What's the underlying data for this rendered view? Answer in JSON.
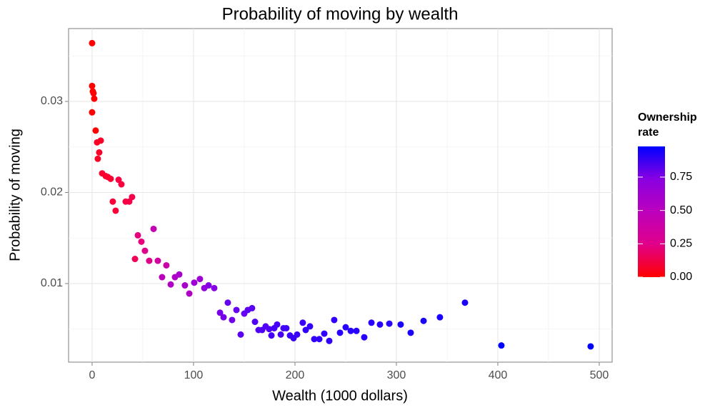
{
  "chart_data": {
    "type": "scatter",
    "title": "Probability of moving by wealth",
    "x_label": "Wealth (1000 dollars)",
    "y_label": "Probability of moving",
    "legend_title": [
      "Ownership",
      "rate"
    ],
    "series": [
      {
        "x": [
          0,
          0,
          0.7,
          1.4,
          2.1,
          0,
          3.5,
          4.9,
          8.5,
          7,
          5.6,
          9.9,
          13.4,
          15.5,
          18.3,
          20.4,
          23.2,
          26.1,
          28.9,
          33.1,
          36.6,
          39.4,
          42.3,
          45.1,
          48.6,
          52.1,
          56.3,
          60.6,
          64.8,
          69,
          73.2,
          77.5,
          81.7,
          85.9,
          91.5,
          95.8,
          100.7,
          106.3,
          110.6,
          114.8,
          120.4,
          126.1,
          129.6,
          133.8,
          138,
          142.3,
          146.5,
          150,
          153.5,
          157.7,
          160.6,
          164.1,
          167.6,
          171.1,
          174.6,
          176.8,
          179.6,
          182.4,
          186,
          188.7,
          191.5,
          195.1,
          198.6,
          202.1,
          207.7,
          210.6,
          214.8,
          219,
          224,
          228.9,
          233.8,
          238.7,
          244.4,
          250,
          255,
          260.6,
          268.3,
          275.4,
          283.8,
          293,
          304.2,
          314.1,
          326.8,
          342.9,
          367.6,
          403.5,
          491.5
        ],
        "values": [
          0.0364,
          0.0317,
          0.0311,
          0.0309,
          0.0303,
          0.0288,
          0.0268,
          0.0255,
          0.0257,
          0.0244,
          0.0237,
          0.0221,
          0.0218,
          0.0217,
          0.0215,
          0.019,
          0.018,
          0.0214,
          0.0209,
          0.019,
          0.019,
          0.0195,
          0.0127,
          0.0153,
          0.0146,
          0.0136,
          0.0125,
          0.016,
          0.0125,
          0.0107,
          0.012,
          0.0099,
          0.0107,
          0.011,
          0.0098,
          0.0089,
          0.0101,
          0.0105,
          0.0095,
          0.0098,
          0.0095,
          0.0068,
          0.0063,
          0.0079,
          0.006,
          0.0071,
          0.0044,
          0.0067,
          0.0071,
          0.0073,
          0.0058,
          0.0049,
          0.0049,
          0.0053,
          0.005,
          0.0043,
          0.0051,
          0.0055,
          0.0044,
          0.0051,
          0.0051,
          0.0043,
          0.004,
          0.0044,
          0.0057,
          0.0049,
          0.0053,
          0.0039,
          0.0039,
          0.0045,
          0.0037,
          0.006,
          0.0046,
          0.0052,
          0.0048,
          0.0048,
          0.0041,
          0.0057,
          0.0055,
          0.0056,
          0.0055,
          0.0046,
          0.0059,
          0.0063,
          0.0079,
          0.0032,
          0.0031
        ],
        "color_values": [
          0,
          0,
          0,
          0,
          0,
          0,
          0,
          0.02,
          0.02,
          0.02,
          0.02,
          0.03,
          0.03,
          0.03,
          0.03,
          0.04,
          0.04,
          0.05,
          0.05,
          0.06,
          0.06,
          0.07,
          0.1,
          0.2,
          0.2,
          0.25,
          0.25,
          0.45,
          0.35,
          0.5,
          0.4,
          0.55,
          0.55,
          0.6,
          0.6,
          0.55,
          0.65,
          0.65,
          0.7,
          0.75,
          0.75,
          0.8,
          0.8,
          0.85,
          0.82,
          0.85,
          0.88,
          0.85,
          0.88,
          0.88,
          0.9,
          0.9,
          0.9,
          0.9,
          0.9,
          0.92,
          0.92,
          0.92,
          0.92,
          0.93,
          0.93,
          0.94,
          0.94,
          0.94,
          0.94,
          0.95,
          0.95,
          0.95,
          0.95,
          0.95,
          0.95,
          0.95,
          0.96,
          0.96,
          0.96,
          0.96,
          0.96,
          0.96,
          0.96,
          0.96,
          0.97,
          0.97,
          0.97,
          0.97,
          0.97,
          0.98,
          0.98
        ]
      }
    ],
    "color_low": "#ff0000",
    "color_high": "#0000ff",
    "colorlim": [
      0,
      0.98
    ],
    "colorticks": [
      {
        "value": 0,
        "label": "0.00"
      },
      {
        "value": 0.25,
        "label": "0.25"
      },
      {
        "value": 0.5,
        "label": "0.50"
      },
      {
        "value": 0.75,
        "label": "0.75"
      }
    ],
    "xlim": [
      -23.2,
      512.7
    ],
    "xticks": [
      0,
      100,
      200,
      300,
      400,
      500
    ],
    "xminor": [
      50,
      150,
      250,
      350,
      450
    ],
    "ylim": [
      0.00137,
      0.038
    ],
    "yticks": [
      0.01,
      0.02,
      0.03
    ],
    "yminor": [
      0.005,
      0.015,
      0.025,
      0.035
    ],
    "grid": true,
    "legend_position": "right"
  }
}
